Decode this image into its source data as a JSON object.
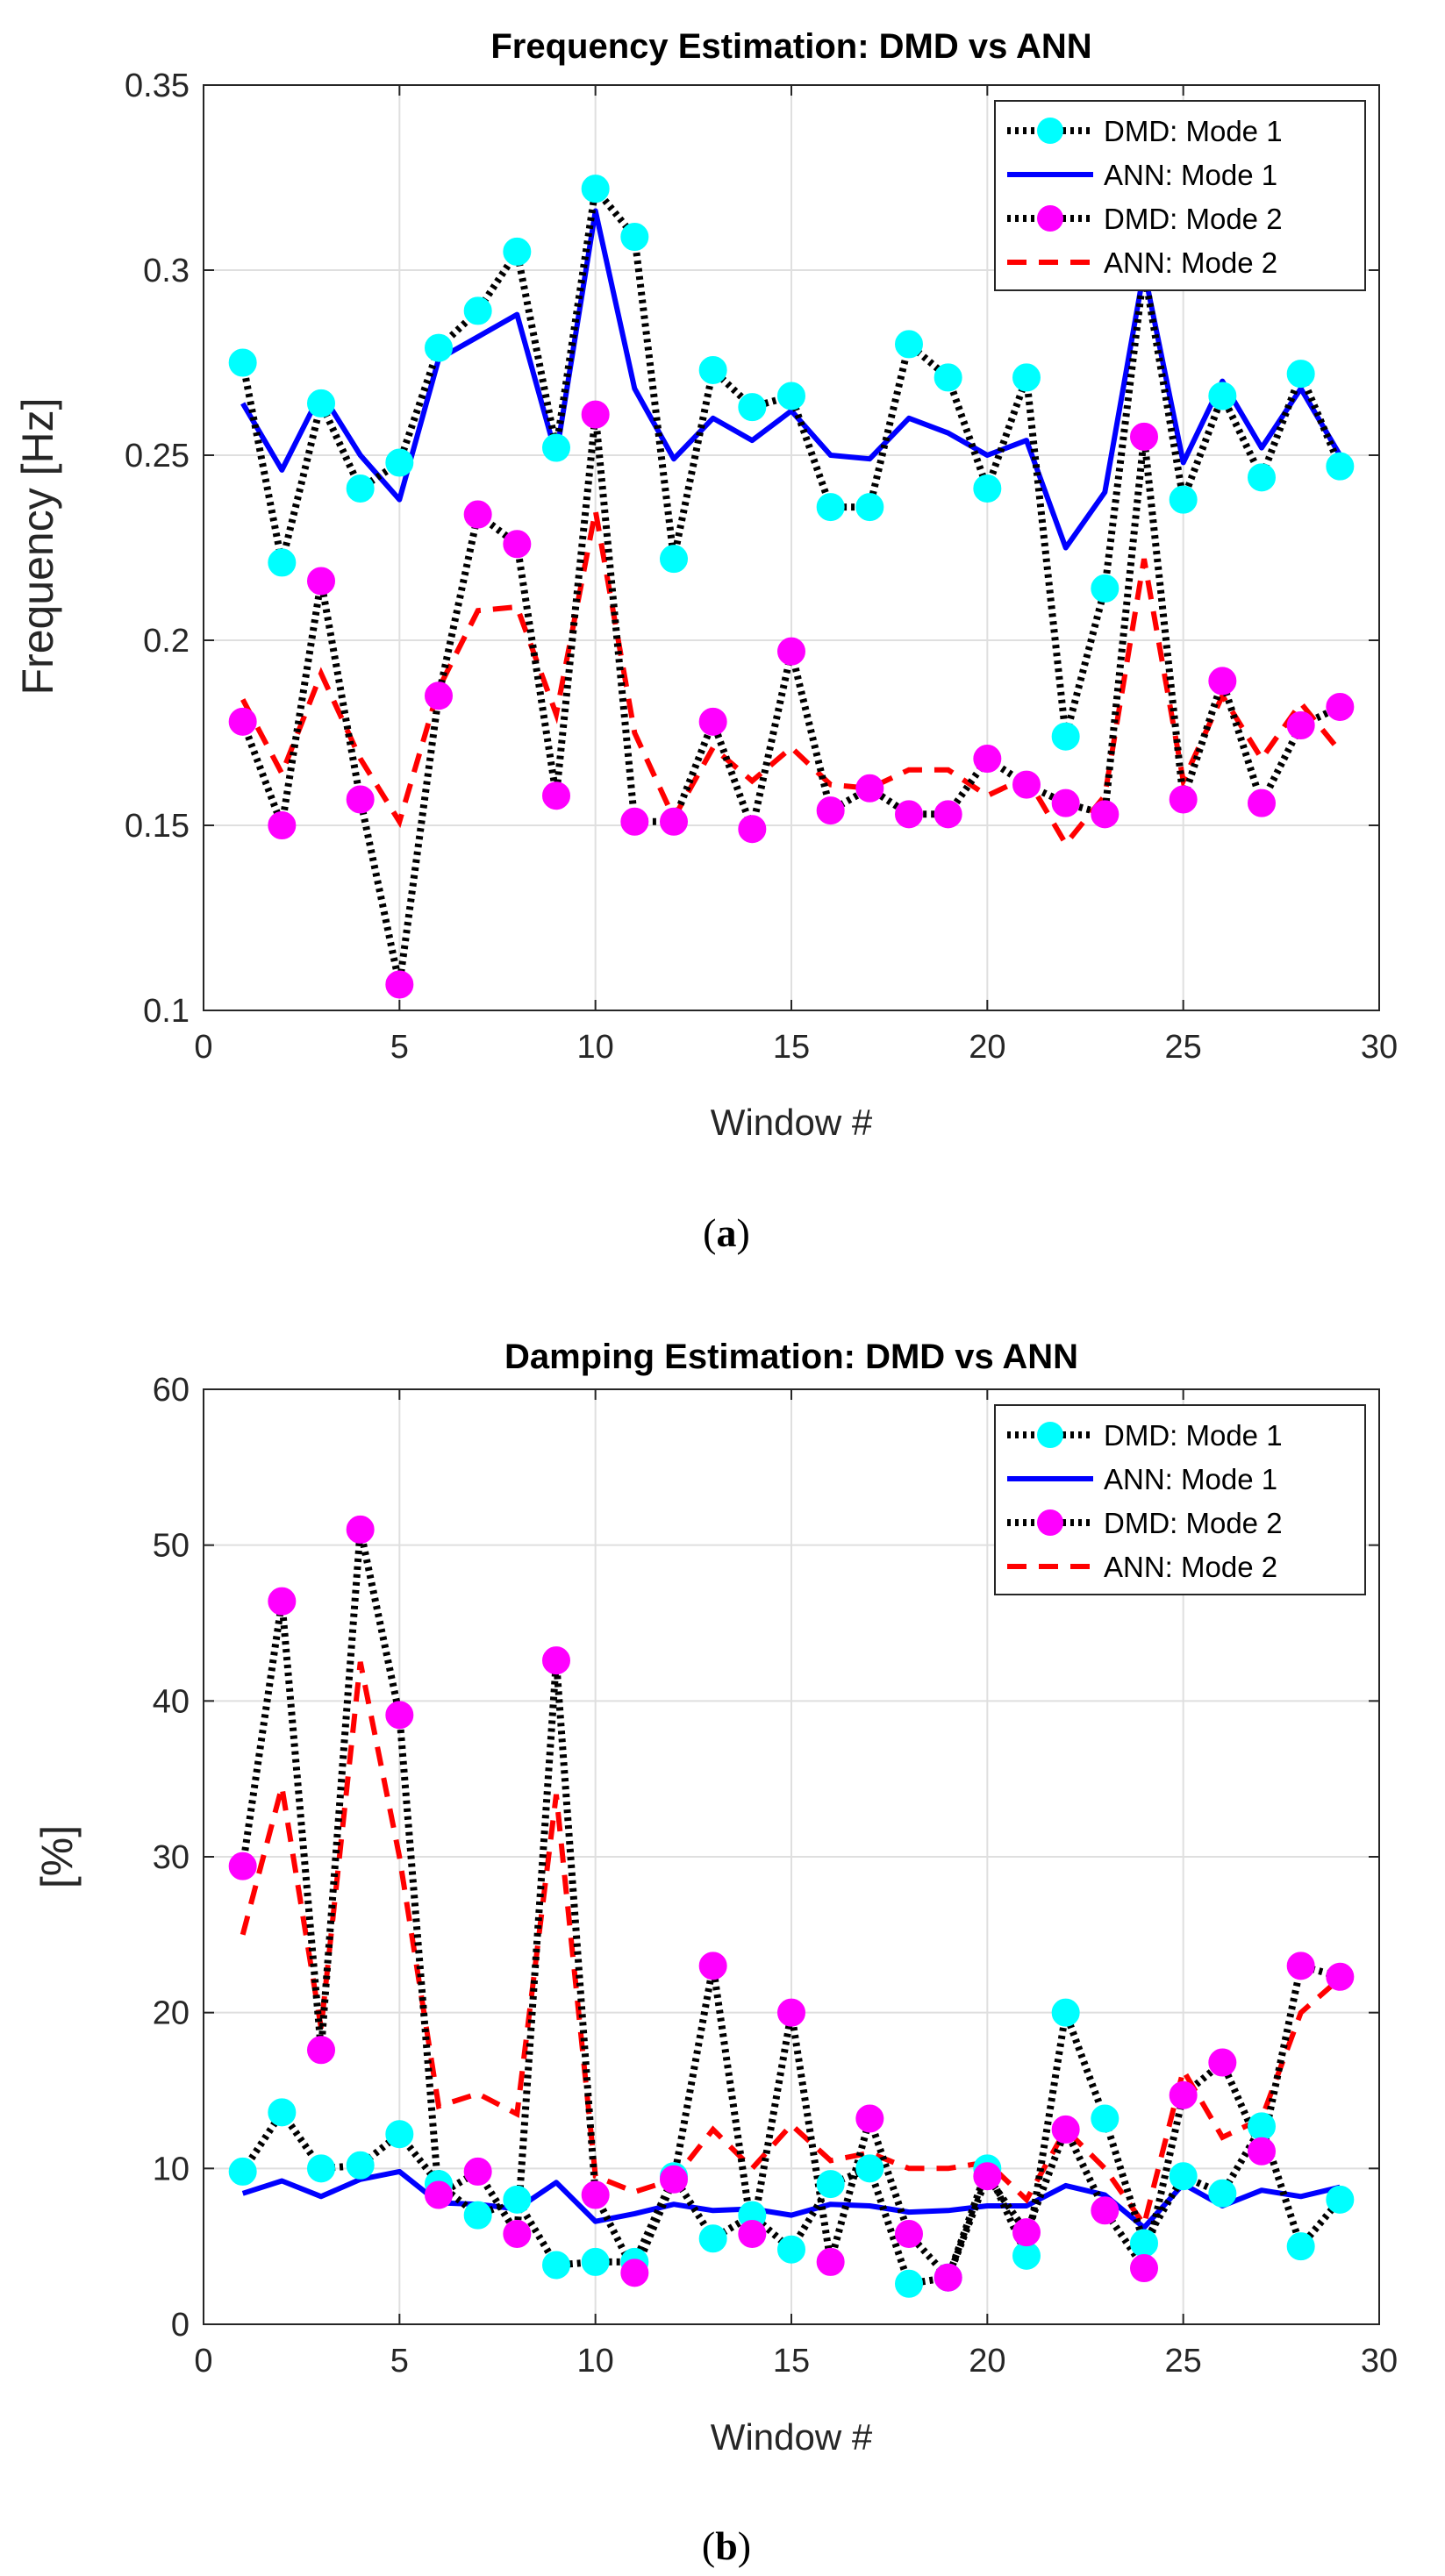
{
  "chart_data": [
    {
      "type": "line",
      "title": "Frequency Estimation: DMD vs ANN",
      "xlabel": "Window #",
      "ylabel": "Frequency [Hz]",
      "xlim": [
        0,
        30
      ],
      "ylim": [
        0.1,
        0.35
      ],
      "xticks": [
        0,
        5,
        10,
        15,
        20,
        25,
        30
      ],
      "yticks": [
        0.1,
        0.15,
        0.2,
        0.25,
        0.3,
        0.35
      ],
      "xtick_labels": [
        "0",
        "5",
        "10",
        "15",
        "20",
        "25",
        "30"
      ],
      "ytick_labels": [
        "0.1",
        "0.15",
        "0.2",
        "0.25",
        "0.3",
        "0.35"
      ],
      "grid": true,
      "legend_position": "top-right",
      "caption_letter": "a",
      "x": [
        1,
        2,
        3,
        4,
        5,
        6,
        7,
        8,
        9,
        10,
        11,
        12,
        13,
        14,
        15,
        16,
        17,
        18,
        19,
        20,
        21,
        22,
        23,
        24,
        25,
        26,
        27,
        28,
        29
      ],
      "series": [
        {
          "name": "DMD: Mode 1",
          "style": "dotted-marker",
          "color": "#000000",
          "marker_color": "#00FFFF",
          "values": [
            0.275,
            0.221,
            0.264,
            0.241,
            0.248,
            0.279,
            0.289,
            0.305,
            0.252,
            0.322,
            0.309,
            0.222,
            0.273,
            0.263,
            0.266,
            0.236,
            0.236,
            0.28,
            0.271,
            0.241,
            0.271,
            0.174,
            0.214,
            0.3,
            0.238,
            0.266,
            0.244,
            0.272,
            0.247
          ]
        },
        {
          "name": "ANN: Mode 1",
          "style": "solid",
          "color": "#0000FF",
          "values": [
            0.264,
            0.246,
            0.267,
            0.25,
            0.238,
            0.276,
            0.282,
            0.288,
            0.25,
            0.316,
            0.268,
            0.249,
            0.26,
            0.254,
            0.262,
            0.25,
            0.249,
            0.26,
            0.256,
            0.25,
            0.254,
            0.225,
            0.24,
            0.3,
            0.248,
            0.27,
            0.252,
            0.268,
            0.25
          ]
        },
        {
          "name": "DMD: Mode 2",
          "style": "dotted-marker",
          "color": "#000000",
          "marker_color": "#FF00FF",
          "values": [
            0.178,
            0.15,
            0.216,
            0.157,
            0.107,
            0.185,
            0.234,
            0.226,
            0.158,
            0.261,
            0.151,
            0.151,
            0.178,
            0.149,
            0.197,
            0.154,
            0.16,
            0.153,
            0.153,
            0.168,
            0.161,
            0.156,
            0.153,
            0.255,
            0.157,
            0.189,
            0.156,
            0.177,
            0.182
          ]
        },
        {
          "name": "ANN: Mode 2",
          "style": "dashed",
          "color": "#FF0000",
          "values": [
            0.184,
            0.164,
            0.191,
            0.168,
            0.151,
            0.187,
            0.208,
            0.209,
            0.18,
            0.235,
            0.175,
            0.152,
            0.171,
            0.162,
            0.171,
            0.161,
            0.16,
            0.165,
            0.165,
            0.158,
            0.163,
            0.145,
            0.158,
            0.222,
            0.162,
            0.185,
            0.168,
            0.183,
            0.17
          ]
        }
      ]
    },
    {
      "type": "line",
      "title": "Damping Estimation: DMD vs ANN",
      "xlabel": "Window #",
      "ylabel": "[%]",
      "xlim": [
        0,
        30
      ],
      "ylim": [
        0,
        60
      ],
      "xticks": [
        0,
        5,
        10,
        15,
        20,
        25,
        30
      ],
      "yticks": [
        0,
        10,
        20,
        30,
        40,
        50,
        60
      ],
      "xtick_labels": [
        "0",
        "5",
        "10",
        "15",
        "20",
        "25",
        "30"
      ],
      "ytick_labels": [
        "0",
        "10",
        "20",
        "30",
        "40",
        "50",
        "60"
      ],
      "grid": true,
      "legend_position": "top-right",
      "caption_letter": "b",
      "x": [
        1,
        2,
        3,
        4,
        5,
        6,
        7,
        8,
        9,
        10,
        11,
        12,
        13,
        14,
        15,
        16,
        17,
        18,
        19,
        20,
        21,
        22,
        23,
        24,
        25,
        26,
        27,
        28,
        29
      ],
      "series": [
        {
          "name": "DMD: Mode 1",
          "style": "dotted-marker",
          "color": "#000000",
          "marker_color": "#00FFFF",
          "values": [
            9.8,
            13.6,
            10.0,
            10.2,
            12.2,
            9.0,
            7.0,
            8.0,
            3.8,
            4.0,
            4.0,
            9.5,
            5.5,
            7.0,
            4.8,
            9.0,
            10.0,
            2.6,
            3.0,
            10.0,
            4.4,
            20.0,
            13.2,
            5.2,
            9.5,
            8.4,
            12.7,
            5.0,
            8.0
          ]
        },
        {
          "name": "ANN: Mode 1",
          "style": "solid",
          "color": "#0000FF",
          "values": [
            8.4,
            9.2,
            8.2,
            9.3,
            9.8,
            7.8,
            7.7,
            7.4,
            9.1,
            6.6,
            7.1,
            7.7,
            7.3,
            7.4,
            7.0,
            7.7,
            7.6,
            7.2,
            7.3,
            7.6,
            7.6,
            8.9,
            8.3,
            6.2,
            9.0,
            7.6,
            8.6,
            8.2,
            8.8
          ]
        },
        {
          "name": "DMD: Mode 2",
          "style": "dotted-marker",
          "color": "#000000",
          "marker_color": "#FF00FF",
          "values": [
            29.4,
            46.4,
            17.6,
            51.0,
            39.1,
            8.3,
            9.8,
            5.8,
            42.6,
            8.3,
            3.3,
            9.3,
            23.0,
            5.8,
            20.0,
            4.0,
            13.2,
            5.8,
            3.0,
            9.5,
            5.9,
            12.5,
            7.3,
            3.6,
            14.7,
            16.8,
            11.1,
            23.0,
            22.3
          ]
        },
        {
          "name": "ANN: Mode 2",
          "style": "dashed",
          "color": "#FF0000",
          "values": [
            25.0,
            34.5,
            19.0,
            42.5,
            30.0,
            14.0,
            14.8,
            13.5,
            34.0,
            9.5,
            8.5,
            9.3,
            12.5,
            10.0,
            12.8,
            10.5,
            11.0,
            10.0,
            10.0,
            10.4,
            8.0,
            12.5,
            10.0,
            6.4,
            16.3,
            12.0,
            13.2,
            20.0,
            22.2
          ]
        }
      ]
    }
  ]
}
